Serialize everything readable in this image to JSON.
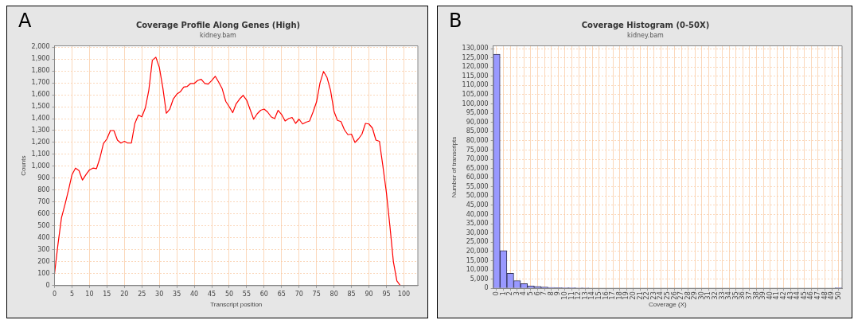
{
  "chart_data": [
    {
      "type": "line",
      "title": "Coverage Profile Along Genes (High)",
      "subtitle": "kidney.bam",
      "xlabel": "Transcript position",
      "ylabel": "Counts",
      "annotations": [
        "A"
      ],
      "x": [
        0,
        1,
        2,
        3,
        4,
        5,
        6,
        7,
        8,
        9,
        10,
        11,
        12,
        13,
        14,
        15,
        16,
        17,
        18,
        19,
        20,
        21,
        22,
        23,
        24,
        25,
        26,
        27,
        28,
        29,
        30,
        31,
        32,
        33,
        34,
        35,
        36,
        37,
        38,
        39,
        40,
        41,
        42,
        43,
        44,
        45,
        46,
        47,
        48,
        49,
        50,
        51,
        52,
        53,
        54,
        55,
        56,
        57,
        58,
        59,
        60,
        61,
        62,
        63,
        64,
        65,
        66,
        67,
        68,
        69,
        70,
        71,
        72,
        73,
        74,
        75,
        76,
        77,
        78,
        79,
        80,
        81,
        82,
        83,
        84,
        85,
        86,
        87,
        88,
        89,
        90,
        91,
        92,
        93,
        94,
        95,
        96,
        97,
        98,
        99
      ],
      "series": [
        {
          "color": "#ff0000",
          "values": [
            100,
            350,
            570,
            680,
            800,
            930,
            985,
            965,
            885,
            930,
            970,
            985,
            980,
            1070,
            1190,
            1230,
            1300,
            1300,
            1220,
            1195,
            1210,
            1195,
            1195,
            1360,
            1430,
            1415,
            1490,
            1640,
            1890,
            1915,
            1830,
            1660,
            1445,
            1480,
            1565,
            1605,
            1625,
            1665,
            1670,
            1695,
            1695,
            1720,
            1730,
            1695,
            1690,
            1720,
            1755,
            1705,
            1650,
            1545,
            1500,
            1450,
            1525,
            1565,
            1595,
            1555,
            1475,
            1395,
            1440,
            1470,
            1480,
            1455,
            1415,
            1400,
            1470,
            1435,
            1380,
            1400,
            1410,
            1360,
            1395,
            1355,
            1370,
            1380,
            1455,
            1540,
            1700,
            1795,
            1745,
            1640,
            1460,
            1385,
            1375,
            1305,
            1265,
            1270,
            1200,
            1230,
            1270,
            1360,
            1355,
            1320,
            1220,
            1210,
            1000,
            780,
            500,
            200,
            40,
            0
          ]
        }
      ],
      "xlim": [
        0,
        104
      ],
      "xticks": [
        0,
        5,
        10,
        15,
        20,
        25,
        30,
        35,
        40,
        45,
        50,
        55,
        60,
        65,
        70,
        75,
        80,
        85,
        90,
        95,
        100
      ],
      "ylim": [
        0,
        2010
      ],
      "yticks": [
        0,
        100,
        200,
        300,
        400,
        500,
        600,
        700,
        800,
        900,
        {
          "value": 1000,
          "label": "1,000"
        },
        {
          "value": 1100,
          "label": "1,100"
        },
        {
          "value": 1200,
          "label": "1,200"
        },
        {
          "value": 1300,
          "label": "1,300"
        },
        {
          "value": 1400,
          "label": "1,400"
        },
        {
          "value": 1500,
          "label": "1,500"
        },
        {
          "value": 1600,
          "label": "1,600"
        },
        {
          "value": 1700,
          "label": "1,700"
        },
        {
          "value": 1800,
          "label": "1,800"
        },
        {
          "value": 1900,
          "label": "1,900"
        },
        {
          "value": 2000,
          "label": "2,000"
        }
      ],
      "grid": true,
      "marker": "none"
    },
    {
      "type": "bar",
      "title": "Coverage Histogram (0-50X)",
      "subtitle": "kidney.bam",
      "xlabel": "Coverage (X)",
      "ylabel": "Number of transcripts",
      "annotations": [
        "B"
      ],
      "categories": [
        "0",
        "1",
        "2",
        "3",
        "4",
        "5",
        "6",
        "7",
        "8",
        "9",
        "10",
        "11",
        "12",
        "13",
        "14",
        "15",
        "16",
        "17",
        "18",
        "19",
        "20",
        "21",
        "22",
        "23",
        "24",
        "25",
        "26",
        "27",
        "28",
        "29",
        "30",
        "31",
        "32",
        "33",
        "34",
        "35",
        "36",
        "37",
        "38",
        "39",
        "40",
        "41",
        "42",
        "43",
        "44",
        "45",
        "46",
        "47",
        "48",
        "49",
        "50"
      ],
      "series": [
        {
          "color": "#9999ff",
          "values": [
            127000,
            20500,
            8200,
            4200,
            2500,
            1400,
            1000,
            700,
            500,
            400,
            300,
            300,
            200,
            200,
            0,
            0,
            0,
            0,
            0,
            0,
            0,
            0,
            0,
            0,
            0,
            0,
            0,
            0,
            0,
            0,
            0,
            0,
            0,
            0,
            0,
            0,
            0,
            0,
            0,
            0,
            0,
            0,
            0,
            0,
            0,
            0,
            0,
            0,
            0,
            0,
            300
          ]
        }
      ],
      "ylim": [
        0,
        131500
      ],
      "yticks": [
        0,
        {
          "value": 5000,
          "label": "5,000"
        },
        {
          "value": 10000,
          "label": "10,000"
        },
        {
          "value": 15000,
          "label": "15,000"
        },
        {
          "value": 20000,
          "label": "20,000"
        },
        {
          "value": 25000,
          "label": "25,000"
        },
        {
          "value": 30000,
          "label": "30,000"
        },
        {
          "value": 35000,
          "label": "35,000"
        },
        {
          "value": 40000,
          "label": "40,000"
        },
        {
          "value": 45000,
          "label": "45,000"
        },
        {
          "value": 50000,
          "label": "50,000"
        },
        {
          "value": 55000,
          "label": "55,000"
        },
        {
          "value": 60000,
          "label": "60,000"
        },
        {
          "value": 65000,
          "label": "65,000"
        },
        {
          "value": 70000,
          "label": "70,000"
        },
        {
          "value": 75000,
          "label": "75,000"
        },
        {
          "value": 80000,
          "label": "80,000"
        },
        {
          "value": 85000,
          "label": "85,000"
        },
        {
          "value": 90000,
          "label": "90,000"
        },
        {
          "value": 95000,
          "label": "95,000"
        },
        {
          "value": 100000,
          "label": "100,000"
        },
        {
          "value": 105000,
          "label": "105,000"
        },
        {
          "value": 110000,
          "label": "110,000"
        },
        {
          "value": 115000,
          "label": "115,000"
        },
        {
          "value": 120000,
          "label": "120,000"
        },
        {
          "value": 125000,
          "label": "125,000"
        },
        {
          "value": 130000,
          "label": "130,000"
        }
      ],
      "grid": true
    }
  ]
}
